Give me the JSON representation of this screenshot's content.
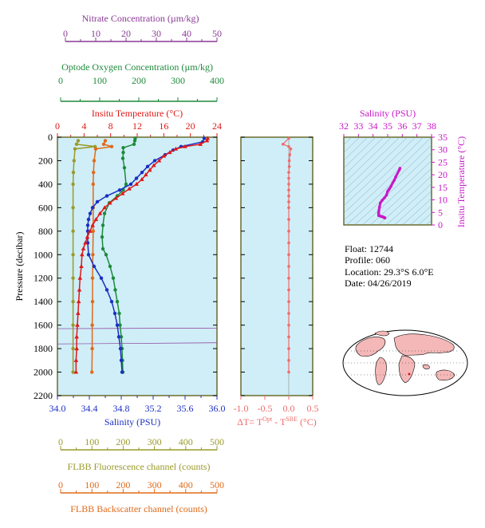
{
  "colors": {
    "nitrate": "#8a3a96",
    "oxygen": "#1d8a3a",
    "temperature": "#e01818",
    "salinity": "#1b2fc4",
    "salinity_title": "#c818c8",
    "fluorescence": "#9a9a2a",
    "backscatter": "#e06a18",
    "delta_t": "#f06a6a",
    "panel_bg": "#cfeef8",
    "frame": "#6b6b2a",
    "land": "#f4b8b8",
    "ocean": "#ffffff"
  },
  "axes": {
    "nitrate": {
      "title": "Nitrate Concentration (µm/kg)",
      "ticks": [
        "0",
        "10",
        "20",
        "30",
        "40",
        "50"
      ]
    },
    "oxygen": {
      "title": "Optode Oxygen Concentration (µm/kg)",
      "ticks": [
        "0",
        "100",
        "200",
        "300",
        "400"
      ]
    },
    "temperature": {
      "title": "Insitu Temperature (°C)",
      "ticks": [
        "0",
        "4",
        "8",
        "12",
        "16",
        "20",
        "24"
      ]
    },
    "pressure": {
      "title": "Pressure (decibar)",
      "ticks": [
        "0",
        "200",
        "400",
        "600",
        "800",
        "1000",
        "1200",
        "1400",
        "1600",
        "1800",
        "2000",
        "2200"
      ]
    },
    "salinity": {
      "title": "Salinity (PSU)",
      "ticks": [
        "34.0",
        "34.4",
        "34.8",
        "35.2",
        "35.6",
        "36.0"
      ]
    },
    "fluorescence": {
      "title": "FLBB Fluorescence channel (counts)",
      "ticks": [
        "0",
        "100",
        "200",
        "300",
        "400",
        "500"
      ]
    },
    "backscatter": {
      "title": "FLBB Backscatter channel (counts)",
      "ticks": [
        "0",
        "100",
        "200",
        "300",
        "400",
        "500"
      ]
    },
    "delta_t": {
      "ticks": [
        "-1.0",
        "-0.5",
        "0.0",
        "0.5"
      ]
    },
    "ts_salinity": {
      "title": "Salinity (PSU)",
      "ticks": [
        "32",
        "33",
        "34",
        "35",
        "36",
        "37",
        "38"
      ]
    },
    "ts_temperature": {
      "title": "Insitu Temperature (°C)",
      "ticks": [
        "0",
        "5",
        "10",
        "15",
        "20",
        "25",
        "30",
        "35"
      ]
    }
  },
  "delta_label": {
    "prefix": "ΔT= T",
    "sup1": "Opt",
    "mid": " - T",
    "sup2": "SBE",
    "suffix": " (°C)"
  },
  "info": {
    "float": "Float:  12744",
    "profile": "Profile:  060",
    "location": "Location:  29.3°S   6.0°E",
    "date": "Date:  04/26/2019"
  },
  "chart_data": [
    {
      "type": "line",
      "name": "Insitu Temperature",
      "unit": "°C",
      "xlim": [
        0,
        24
      ],
      "ylim": [
        2200,
        0
      ],
      "points": [
        [
          22.6,
          10
        ],
        [
          22.5,
          30
        ],
        [
          21.5,
          60
        ],
        [
          19.2,
          80
        ],
        [
          17.8,
          100
        ],
        [
          16.9,
          130
        ],
        [
          16.0,
          160
        ],
        [
          15.3,
          200
        ],
        [
          14.5,
          240
        ],
        [
          13.9,
          280
        ],
        [
          13.3,
          320
        ],
        [
          12.7,
          360
        ],
        [
          11.9,
          400
        ],
        [
          10.8,
          440
        ],
        [
          9.8,
          480
        ],
        [
          8.8,
          520
        ],
        [
          7.9,
          560
        ],
        [
          7.1,
          600
        ],
        [
          6.4,
          650
        ],
        [
          5.8,
          700
        ],
        [
          5.3,
          750
        ],
        [
          4.9,
          800
        ],
        [
          4.5,
          850
        ],
        [
          4.2,
          900
        ],
        [
          3.9,
          950
        ],
        [
          3.7,
          1000
        ],
        [
          3.6,
          1100
        ],
        [
          3.4,
          1200
        ],
        [
          3.3,
          1300
        ],
        [
          3.2,
          1400
        ],
        [
          3.1,
          1500
        ],
        [
          3.0,
          1600
        ],
        [
          2.9,
          1700
        ],
        [
          2.9,
          1800
        ],
        [
          2.8,
          1900
        ],
        [
          2.8,
          2000
        ]
      ]
    },
    {
      "type": "line",
      "name": "Salinity",
      "unit": "PSU",
      "xlim": [
        34.0,
        36.0
      ],
      "ylim": [
        2200,
        0
      ],
      "points": [
        [
          35.84,
          10
        ],
        [
          35.82,
          40
        ],
        [
          35.55,
          80
        ],
        [
          35.45,
          110
        ],
        [
          35.35,
          150
        ],
        [
          35.22,
          200
        ],
        [
          35.13,
          250
        ],
        [
          35.06,
          300
        ],
        [
          34.99,
          350
        ],
        [
          34.92,
          400
        ],
        [
          34.78,
          450
        ],
        [
          34.62,
          500
        ],
        [
          34.5,
          550
        ],
        [
          34.44,
          600
        ],
        [
          34.41,
          650
        ],
        [
          34.39,
          700
        ],
        [
          34.38,
          750
        ],
        [
          34.38,
          800
        ],
        [
          34.38,
          900
        ],
        [
          34.39,
          1000
        ],
        [
          34.46,
          1100
        ],
        [
          34.55,
          1200
        ],
        [
          34.62,
          1300
        ],
        [
          34.68,
          1400
        ],
        [
          34.72,
          1500
        ],
        [
          34.75,
          1600
        ],
        [
          34.77,
          1700
        ],
        [
          34.79,
          1800
        ],
        [
          34.8,
          1900
        ],
        [
          34.81,
          2000
        ]
      ]
    },
    {
      "type": "line",
      "name": "Optode Oxygen Concentration",
      "unit": "µm/kg",
      "xlim": [
        0,
        400
      ],
      "ylim": [
        2200,
        0
      ],
      "points": [
        [
          195,
          10
        ],
        [
          194,
          30
        ],
        [
          192,
          60
        ],
        [
          165,
          90
        ],
        [
          165,
          130
        ],
        [
          164,
          180
        ],
        [
          168,
          260
        ],
        [
          172,
          400
        ],
        [
          165,
          450
        ],
        [
          150,
          500
        ],
        [
          130,
          560
        ],
        [
          118,
          650
        ],
        [
          114,
          750
        ],
        [
          112,
          850
        ],
        [
          114,
          950
        ],
        [
          122,
          1000
        ],
        [
          132,
          1100
        ],
        [
          140,
          1200
        ],
        [
          145,
          1300
        ],
        [
          150,
          1400
        ],
        [
          155,
          1500
        ],
        [
          157,
          1600
        ],
        [
          160,
          1700
        ],
        [
          162,
          1800
        ],
        [
          163,
          1900
        ],
        [
          164,
          2000
        ]
      ]
    },
    {
      "type": "line",
      "name": "FLBB Backscatter channel",
      "unit": "counts",
      "xlim": [
        0,
        500
      ],
      "ylim": [
        2200,
        0
      ],
      "points": [
        [
          150,
          30
        ],
        [
          145,
          60
        ],
        [
          170,
          80
        ],
        [
          120,
          100
        ],
        [
          115,
          200
        ],
        [
          113,
          300
        ],
        [
          112,
          400
        ],
        [
          112,
          600
        ],
        [
          112,
          800
        ],
        [
          111,
          1000
        ],
        [
          110,
          1200
        ],
        [
          110,
          1400
        ],
        [
          109,
          1600
        ],
        [
          109,
          1800
        ],
        [
          108,
          2000
        ]
      ]
    },
    {
      "type": "line",
      "name": "FLBB Fluorescence channel",
      "unit": "counts",
      "xlim": [
        0,
        500
      ],
      "ylim": [
        2200,
        0
      ],
      "points": [
        [
          65,
          30
        ],
        [
          60,
          60
        ],
        [
          118,
          80
        ],
        [
          55,
          100
        ],
        [
          52,
          200
        ],
        [
          50,
          300
        ],
        [
          49,
          400
        ],
        [
          49,
          600
        ],
        [
          49,
          800
        ],
        [
          49,
          1000
        ],
        [
          49,
          1200
        ],
        [
          49,
          1400
        ],
        [
          49,
          1600
        ],
        [
          49,
          1800
        ],
        [
          49,
          2000
        ]
      ]
    },
    {
      "type": "line",
      "name": "Nitrate Concentration",
      "unit": "µm/kg",
      "xlim": [
        0,
        50
      ],
      "ylim": [
        2200,
        0
      ],
      "points": [
        [
          0,
          1630
        ],
        [
          50,
          1625
        ],
        [
          0,
          1760
        ],
        [
          50,
          1750
        ]
      ]
    },
    {
      "type": "scatter",
      "name": "ΔT",
      "unit": "°C",
      "xlim": [
        -1.0,
        0.5
      ],
      "ylim": [
        2200,
        0
      ],
      "points": [
        [
          0.0,
          10
        ],
        [
          -0.12,
          60
        ],
        [
          0.0,
          80
        ],
        [
          0.04,
          100
        ],
        [
          0.02,
          150
        ],
        [
          0.01,
          200
        ],
        [
          0.01,
          250
        ],
        [
          0.0,
          300
        ],
        [
          0.0,
          350
        ],
        [
          0.0,
          400
        ],
        [
          0.0,
          450
        ],
        [
          0.0,
          500
        ],
        [
          0.0,
          550
        ],
        [
          0.0,
          600
        ],
        [
          0.0,
          700
        ],
        [
          0.0,
          800
        ],
        [
          0.0,
          900
        ],
        [
          0.0,
          1000
        ],
        [
          0.0,
          1100
        ],
        [
          0.0,
          1200
        ],
        [
          0.0,
          1300
        ],
        [
          0.0,
          1400
        ],
        [
          0.0,
          1500
        ],
        [
          0.0,
          1600
        ],
        [
          0.0,
          1700
        ],
        [
          0.0,
          1800
        ],
        [
          0.0,
          1900
        ],
        [
          0.0,
          2000
        ]
      ]
    },
    {
      "type": "scatter",
      "name": "T-S diagram",
      "xlim": [
        32,
        38
      ],
      "ylim": [
        0,
        35
      ],
      "points": [
        [
          35.84,
          22.6
        ],
        [
          35.8,
          22.0
        ],
        [
          35.55,
          19.2
        ],
        [
          35.45,
          17.8
        ],
        [
          35.35,
          16.9
        ],
        [
          35.22,
          15.3
        ],
        [
          35.13,
          14.5
        ],
        [
          35.06,
          13.9
        ],
        [
          34.99,
          13.3
        ],
        [
          34.92,
          11.9
        ],
        [
          34.78,
          10.8
        ],
        [
          34.62,
          9.8
        ],
        [
          34.5,
          8.8
        ],
        [
          34.44,
          7.1
        ],
        [
          34.4,
          5.8
        ],
        [
          34.38,
          4.9
        ],
        [
          34.38,
          4.2
        ],
        [
          34.39,
          3.7
        ],
        [
          34.46,
          3.6
        ],
        [
          34.55,
          3.4
        ],
        [
          34.62,
          3.3
        ],
        [
          34.68,
          3.2
        ],
        [
          34.72,
          3.1
        ],
        [
          34.75,
          3.0
        ],
        [
          34.77,
          2.9
        ],
        [
          34.79,
          2.9
        ],
        [
          34.8,
          2.8
        ],
        [
          34.81,
          2.8
        ]
      ]
    }
  ]
}
